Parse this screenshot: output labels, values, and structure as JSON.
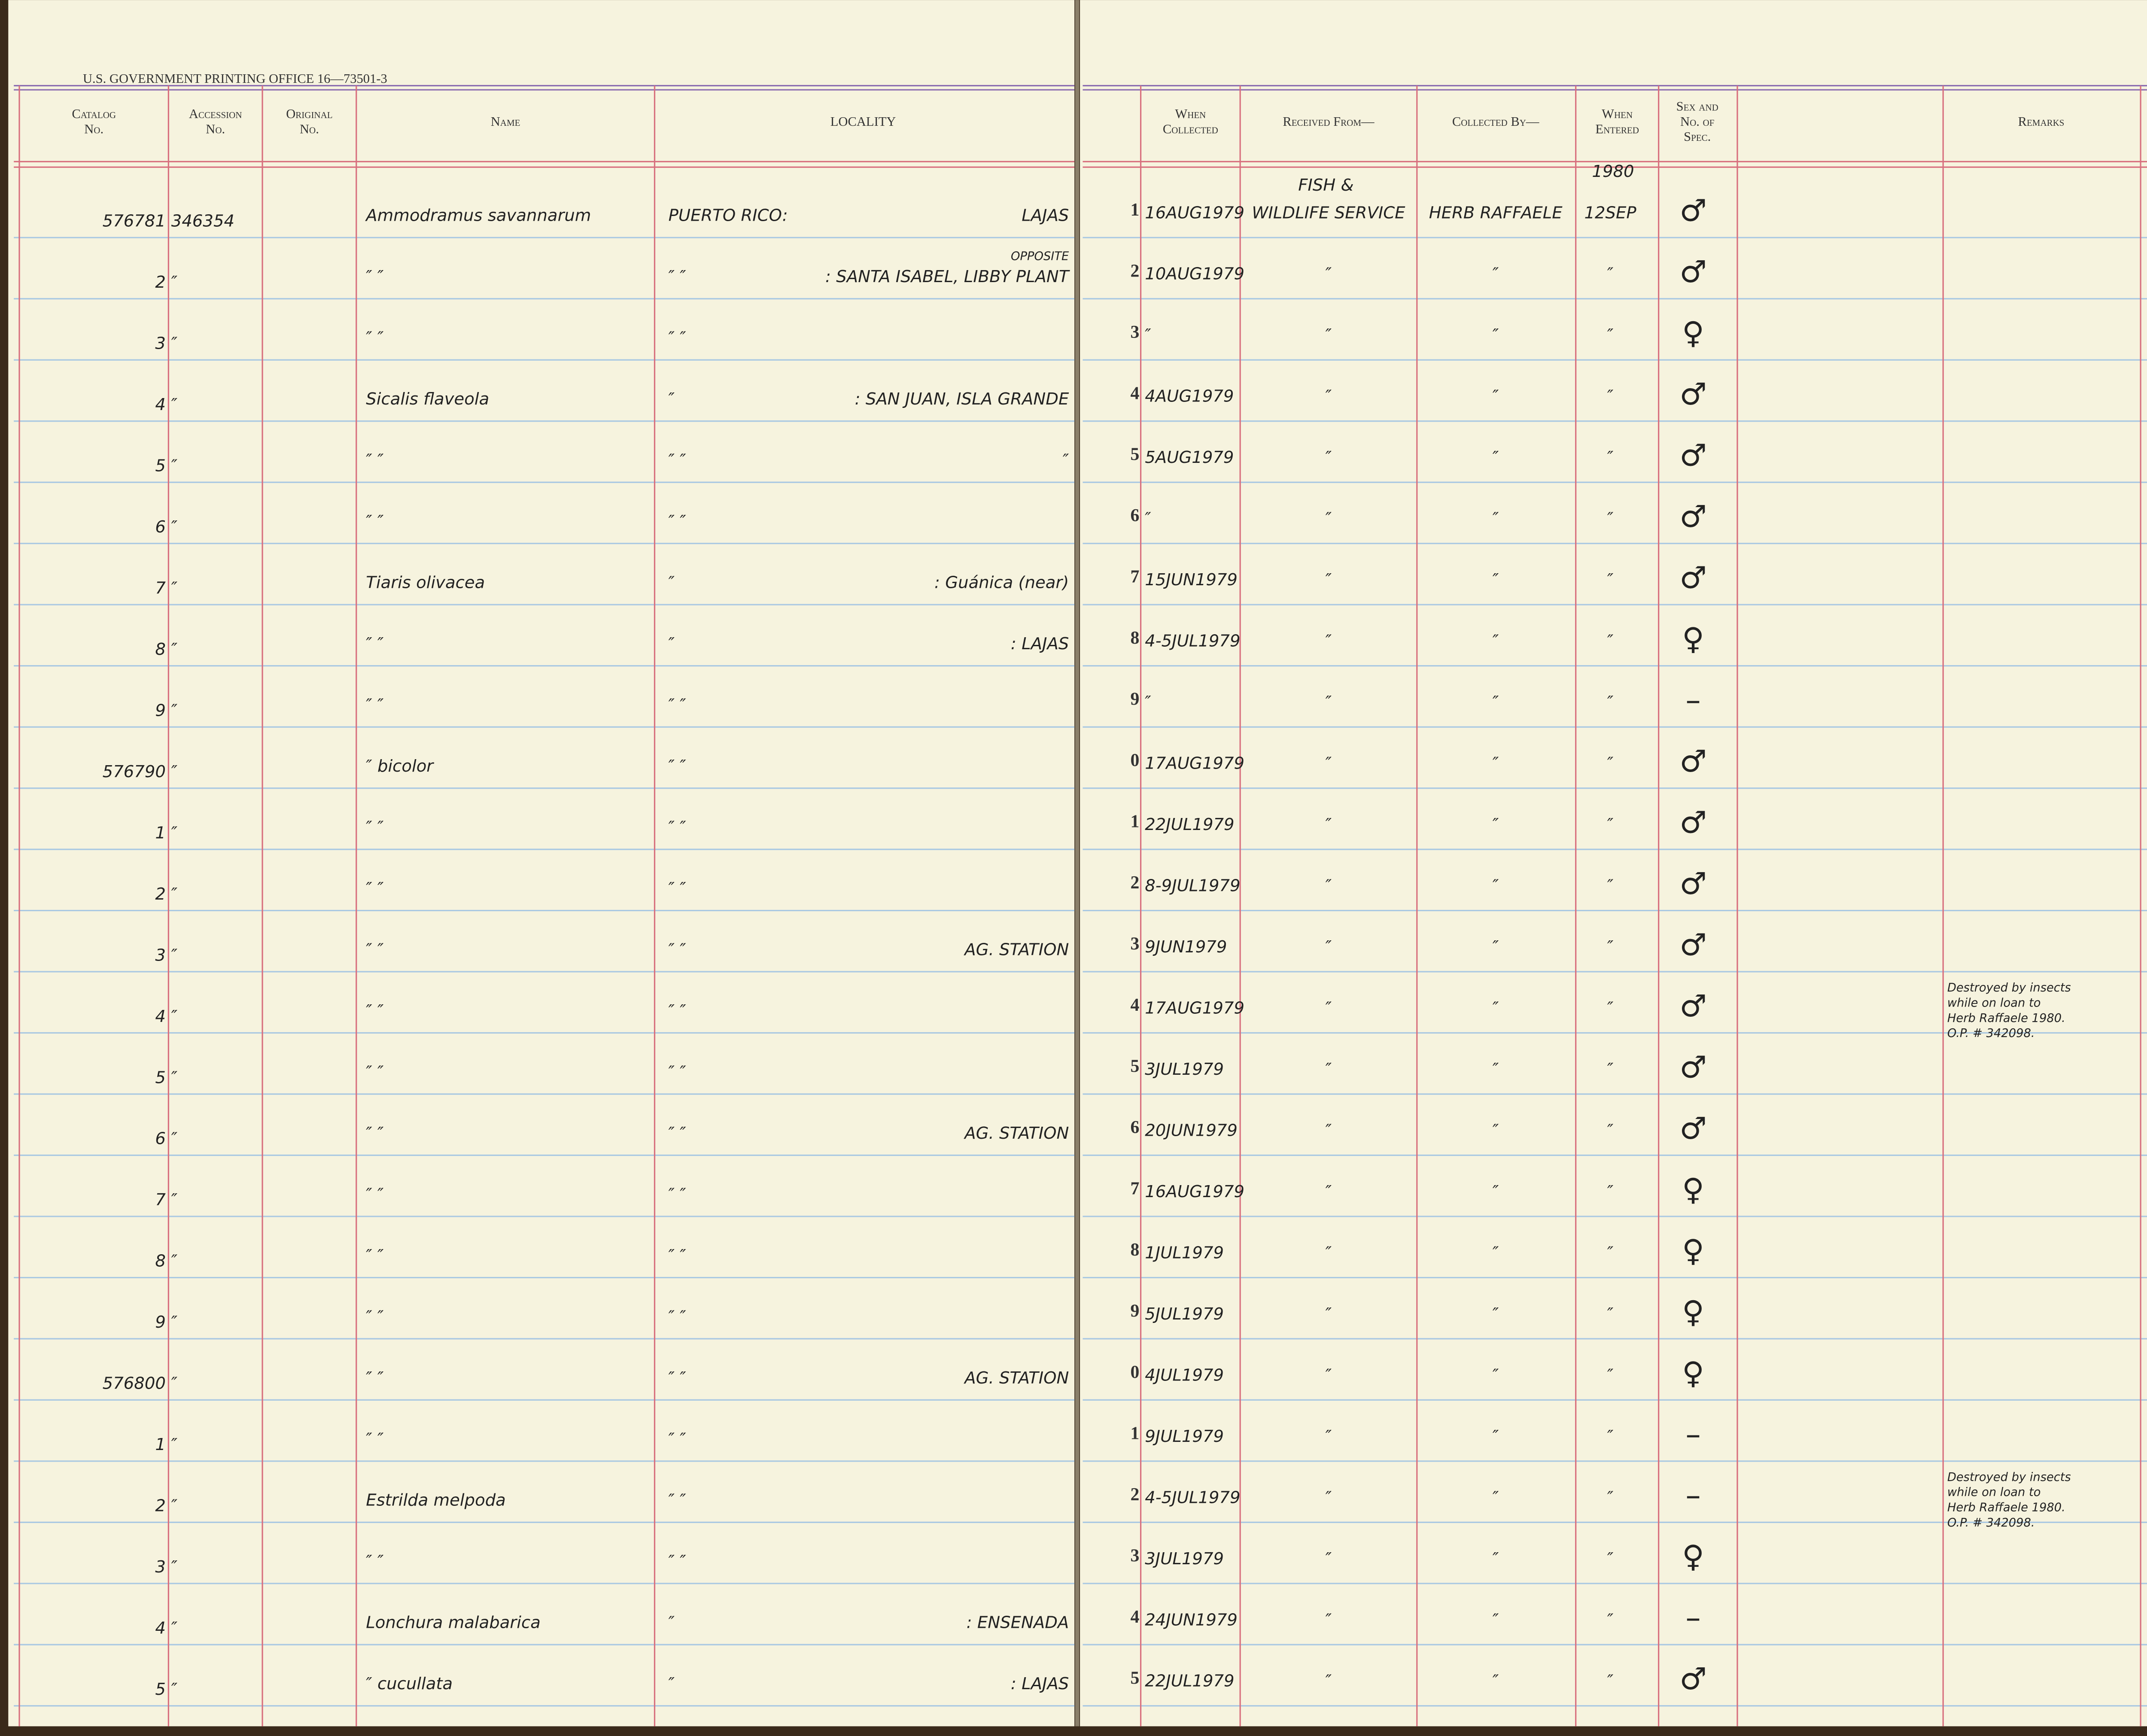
{
  "imprint": "U.S. GOVERNMENT PRINTING OFFICE 16—73501-3",
  "header": [
    {
      "key": "catalog",
      "lines": [
        "Catalog",
        "No."
      ]
    },
    {
      "key": "accession",
      "lines": [
        "Accession",
        "No."
      ]
    },
    {
      "key": "original",
      "lines": [
        "Original",
        "No."
      ]
    },
    {
      "key": "name",
      "lines": [
        "Name"
      ]
    },
    {
      "key": "locality",
      "lines": [
        "LOCALITY"
      ]
    },
    {
      "key": "when_collected",
      "lines": [
        "When",
        "Collected"
      ]
    },
    {
      "key": "received",
      "lines": [
        "Received From—"
      ]
    },
    {
      "key": "collected",
      "lines": [
        "Collected By—"
      ]
    },
    {
      "key": "entered",
      "lines": [
        "When",
        "Entered"
      ]
    },
    {
      "key": "sex",
      "lines": [
        "Sex and",
        "No. of",
        "Spec."
      ]
    },
    {
      "key": "remarks",
      "lines": [
        "Remarks"
      ]
    }
  ],
  "rows": [
    {
      "catalog": "576781",
      "accession": "346354",
      "name": "Ammodramus savannarum",
      "locality": "PUERTO RICO:",
      "detail": "LAJAS",
      "num": "1",
      "date": "16AUG1979",
      "received_note": "FISH &",
      "received": "WILDLIFE SERVICE",
      "collected": "HERB RAFFAELE",
      "entered_note": "1980",
      "entered": "12SEP",
      "sex": "♂"
    },
    {
      "catalog": "2",
      "accession": "″",
      "name": "″          ″",
      "locality": "″     ″",
      "detail_note": "OPPOSITE",
      "detail": ": SANTA ISABEL, LIBBY PLANT",
      "num": "2",
      "date": "10AUG1979",
      "received": "″",
      "collected": "″",
      "entered": "″",
      "sex": "♂"
    },
    {
      "catalog": "3",
      "accession": "″",
      "name": "″          ″",
      "locality": "″          ″",
      "num": "3",
      "date": "″",
      "received": "″",
      "collected": "″",
      "entered": "″",
      "sex": "♀"
    },
    {
      "catalog": "4",
      "accession": "″",
      "name": "Sicalis flaveola",
      "locality": "″",
      "detail": ": SAN JUAN, ISLA GRANDE",
      "num": "4",
      "date": "4AUG1979",
      "received": "″",
      "collected": "″",
      "entered": "″",
      "sex": "♂"
    },
    {
      "catalog": "5",
      "accession": "″",
      "name": "″        ″",
      "locality": "″          ″",
      "detail": "″",
      "num": "5",
      "date": "5AUG1979",
      "received": "″",
      "collected": "″",
      "entered": "″",
      "sex": "♂"
    },
    {
      "catalog": "6",
      "accession": "″",
      "name": "″        ″",
      "locality": "″          ″",
      "num": "6",
      "date": "″",
      "received": "″",
      "collected": "″",
      "entered": "″",
      "sex": "♂"
    },
    {
      "catalog": "7",
      "accession": "″",
      "name": "Tiaris olivacea",
      "locality": "″",
      "detail": ": Guánica (near)",
      "num": "7",
      "date": "15JUN1979",
      "received": "″",
      "collected": "″",
      "entered": "″",
      "sex": "♂"
    },
    {
      "catalog": "8",
      "accession": "″",
      "name": "″        ″",
      "locality": "″",
      "detail": ": LAJAS",
      "num": "8",
      "date": "4-5JUL1979",
      "received": "″",
      "collected": "″",
      "entered": "″",
      "sex": "♀"
    },
    {
      "catalog": "9",
      "accession": "″",
      "name": "″        ″",
      "locality": "″          ″",
      "num": "9",
      "date": "″",
      "received": "″",
      "collected": "″",
      "entered": "″",
      "sex": "–"
    },
    {
      "catalog": "576790",
      "accession": "″",
      "name": "″      bicolor",
      "locality": "″          ″",
      "num": "0",
      "date": "17AUG1979",
      "received": "″",
      "collected": "″",
      "entered": "″",
      "sex": "♂"
    },
    {
      "catalog": "1",
      "accession": "″",
      "name": "″        ″",
      "locality": "″          ″",
      "num": "1",
      "date": "22JUL1979",
      "received": "″",
      "collected": "″",
      "entered": "″",
      "sex": "♂"
    },
    {
      "catalog": "2",
      "accession": "″",
      "name": "″        ″",
      "locality": "″          ″",
      "num": "2",
      "date": "8-9JUL1979",
      "received": "″",
      "collected": "″",
      "entered": "″",
      "sex": "♂"
    },
    {
      "catalog": "3",
      "accession": "″",
      "name": "″        ″",
      "locality": "″          ″",
      "detail": "AG. STATION",
      "num": "3",
      "date": "9JUN1979",
      "received": "″",
      "collected": "″",
      "entered": "″",
      "sex": "♂"
    },
    {
      "catalog": "4",
      "accession": "″",
      "name": "″        ″",
      "locality": "″          ″",
      "num": "4",
      "date": "17AUG1979",
      "received": "″",
      "collected": "″",
      "entered": "″",
      "sex": "♂",
      "remarks": [
        "Destroyed by insects",
        "while on loan to",
        "Herb Raffaele 1980.",
        "O.P. # 342098."
      ]
    },
    {
      "catalog": "5",
      "accession": "″",
      "name": "″        ″",
      "locality": "″          ″",
      "num": "5",
      "date": "3JUL1979",
      "received": "″",
      "collected": "″",
      "entered": "″",
      "sex": "♂"
    },
    {
      "catalog": "6",
      "accession": "″",
      "name": "″        ″",
      "locality": "″          ″",
      "detail": "AG. STATION",
      "num": "6",
      "date": "20JUN1979",
      "received": "″",
      "collected": "″",
      "entered": "″",
      "sex": "♂"
    },
    {
      "catalog": "7",
      "accession": "″",
      "name": "″        ″",
      "locality": "″          ″",
      "num": "7",
      "date": "16AUG1979",
      "received": "″",
      "collected": "″",
      "entered": "″",
      "sex": "♀"
    },
    {
      "catalog": "8",
      "accession": "″",
      "name": "″        ″",
      "locality": "″          ″",
      "num": "8",
      "date": "1JUL1979",
      "received": "″",
      "collected": "″",
      "entered": "″",
      "sex": "♀"
    },
    {
      "catalog": "9",
      "accession": "″",
      "name": "″        ″",
      "locality": "″          ″",
      "num": "9",
      "date": "5JUL1979",
      "received": "″",
      "collected": "″",
      "entered": "″",
      "sex": "♀"
    },
    {
      "catalog": "576800",
      "accession": "″",
      "name": "″        ″",
      "locality": "″          ″",
      "detail": "AG. STATION",
      "num": "0",
      "date": "4JUL1979",
      "received": "″",
      "collected": "″",
      "entered": "″",
      "sex": "♀"
    },
    {
      "catalog": "1",
      "accession": "″",
      "name": "″        ″",
      "locality": "″          ″",
      "num": "1",
      "date": "9JUL1979",
      "received": "″",
      "collected": "″",
      "entered": "″",
      "sex": "–"
    },
    {
      "catalog": "2",
      "accession": "″",
      "name": "Estrilda melpoda",
      "locality": "″          ″",
      "num": "2",
      "date": "4-5JUL1979",
      "received": "″",
      "collected": "″",
      "entered": "″",
      "sex": "–",
      "remarks": [
        "Destroyed by insects",
        "while on loan to",
        "Herb Raffaele 1980.",
        "O.P. # 342098."
      ]
    },
    {
      "catalog": "3",
      "accession": "″",
      "name": "″        ″",
      "locality": "″          ″",
      "num": "3",
      "date": "3JUL1979",
      "received": "″",
      "collected": "″",
      "entered": "″",
      "sex": "♀"
    },
    {
      "catalog": "4",
      "accession": "″",
      "name": "Lonchura malabarica",
      "locality": "″",
      "detail": ": ENSENADA",
      "num": "4",
      "date": "24JUN1979",
      "received": "″",
      "collected": "″",
      "entered": "″",
      "sex": "–"
    },
    {
      "catalog": "5",
      "accession": "″",
      "name": "″         cucullata",
      "locality": "″",
      "detail": ": LAJAS",
      "num": "5",
      "date": "22JUL1979",
      "received": "″",
      "collected": "″",
      "entered": "″",
      "sex": "♂"
    }
  ]
}
